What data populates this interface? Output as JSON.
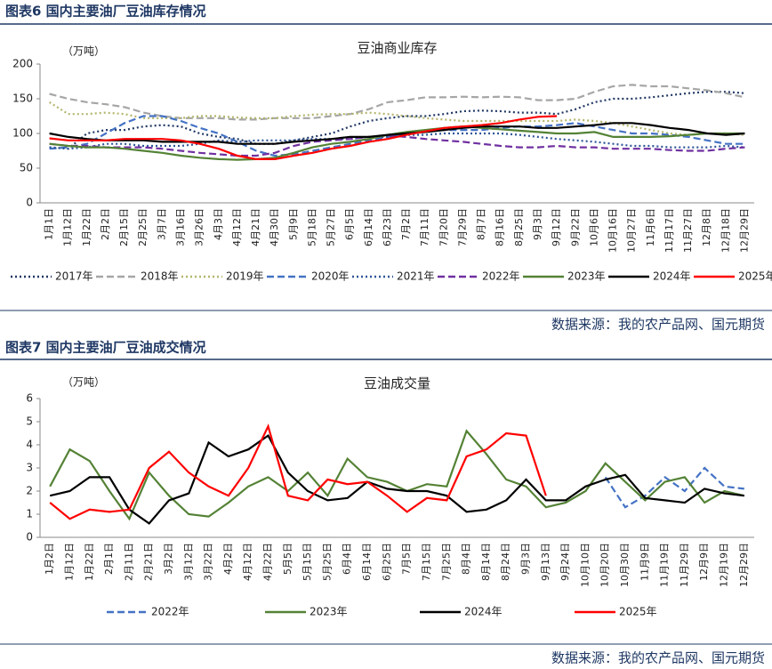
{
  "captions": [
    "图表6  国内主要油厂豆油库存情况",
    "图表7  国内主要油厂豆油成交情况"
  ],
  "sources": [
    "数据来源：我的农产品网、国元期货",
    "数据来源：我的农产品网、国元期货"
  ],
  "chart_data": [
    {
      "type": "line",
      "title": "豆油商业库存",
      "y_unit_label": "（万吨）",
      "categories": [
        "1月1日",
        "1月12日",
        "1月22日",
        "2月2日",
        "2月15日",
        "2月25日",
        "3月7日",
        "3月16日",
        "3月26日",
        "4月3日",
        "4月12日",
        "4月21日",
        "4月30日",
        "5月9日",
        "5月18日",
        "5月27日",
        "6月5日",
        "6月14日",
        "6月23日",
        "7月2日",
        "7月11日",
        "7月20日",
        "7月29日",
        "8月7日",
        "8月16日",
        "8月25日",
        "9月3日",
        "9月12日",
        "9月22日",
        "10月6日",
        "10月16日",
        "10月27日",
        "11月6日",
        "11月17日",
        "11月27日",
        "12月8日",
        "12月18日",
        "12月29日"
      ],
      "ylim": [
        0,
        200
      ],
      "yticks": [
        0,
        50,
        100,
        150,
        200
      ],
      "series": [
        {
          "name": "2017年",
          "color": "#203864",
          "line_style": "dotted",
          "values": [
            80,
            78,
            100,
            105,
            105,
            110,
            112,
            110,
            100,
            95,
            92,
            85,
            85,
            90,
            95,
            100,
            110,
            118,
            122,
            125,
            125,
            128,
            132,
            133,
            132,
            130,
            130,
            128,
            135,
            145,
            150,
            150,
            152,
            155,
            158,
            160,
            160,
            158
          ]
        },
        {
          "name": "2018年",
          "color": "#a6a6a6",
          "line_style": "dashed",
          "values": [
            157,
            150,
            145,
            142,
            138,
            130,
            125,
            122,
            122,
            122,
            120,
            120,
            122,
            122,
            122,
            125,
            128,
            135,
            145,
            148,
            152,
            152,
            153,
            152,
            153,
            152,
            148,
            148,
            150,
            160,
            168,
            170,
            168,
            168,
            165,
            162,
            158,
            152
          ]
        },
        {
          "name": "2019年",
          "color": "#b4b46c",
          "line_style": "dotted",
          "values": [
            145,
            128,
            128,
            130,
            128,
            122,
            122,
            122,
            125,
            125,
            123,
            122,
            122,
            125,
            127,
            128,
            128,
            130,
            128,
            125,
            122,
            120,
            118,
            118,
            118,
            118,
            118,
            118,
            120,
            118,
            115,
            110,
            105,
            100,
            98,
            100,
            100,
            98
          ]
        },
        {
          "name": "2020年",
          "color": "#4472c4",
          "line_style": "dashed",
          "values": [
            78,
            80,
            85,
            100,
            115,
            125,
            125,
            118,
            108,
            100,
            88,
            75,
            68,
            70,
            75,
            80,
            85,
            90,
            95,
            100,
            102,
            105,
            105,
            105,
            108,
            110,
            110,
            112,
            115,
            110,
            105,
            100,
            100,
            98,
            95,
            90,
            85,
            85
          ]
        },
        {
          "name": "2021年",
          "color": "#2e5597",
          "line_style": "dotted",
          "values": [
            80,
            78,
            80,
            85,
            85,
            82,
            82,
            82,
            85,
            90,
            88,
            90,
            90,
            90,
            92,
            92,
            92,
            95,
            95,
            98,
            98,
            100,
            100,
            100,
            100,
            98,
            95,
            92,
            90,
            88,
            85,
            82,
            82,
            80,
            80,
            80,
            82,
            80
          ]
        },
        {
          "name": "2022年",
          "color": "#7030a0",
          "line_style": "dashed",
          "values": [
            85,
            82,
            82,
            80,
            80,
            80,
            78,
            75,
            72,
            70,
            68,
            68,
            72,
            82,
            88,
            90,
            92,
            95,
            97,
            95,
            92,
            90,
            88,
            85,
            82,
            80,
            80,
            82,
            80,
            80,
            78,
            78,
            78,
            76,
            75,
            75,
            78,
            80
          ]
        },
        {
          "name": "2023年",
          "color": "#548235",
          "line_style": "solid",
          "values": [
            85,
            82,
            80,
            80,
            78,
            75,
            72,
            68,
            65,
            63,
            62,
            63,
            65,
            72,
            80,
            85,
            88,
            92,
            98,
            102,
            105,
            108,
            110,
            108,
            106,
            104,
            102,
            100,
            100,
            102,
            95,
            95,
            95,
            96,
            98,
            100,
            100,
            100
          ]
        },
        {
          "name": "2024年",
          "color": "#000000",
          "line_style": "solid",
          "values": [
            100,
            95,
            92,
            90,
            90,
            90,
            88,
            88,
            88,
            88,
            85,
            85,
            85,
            88,
            90,
            92,
            95,
            95,
            98,
            100,
            102,
            105,
            108,
            110,
            110,
            110,
            108,
            108,
            110,
            112,
            115,
            115,
            112,
            108,
            105,
            100,
            98,
            100
          ]
        },
        {
          "name": "2025年",
          "color": "#ff0000",
          "line_style": "solid",
          "values": [
            93,
            90,
            90,
            90,
            92,
            92,
            92,
            90,
            85,
            78,
            68,
            63,
            63,
            68,
            72,
            78,
            82,
            88,
            92,
            98,
            103,
            108,
            110,
            112,
            115,
            120,
            124,
            125,
            null,
            null,
            null,
            null,
            null,
            null,
            null,
            null,
            null,
            null
          ]
        }
      ]
    },
    {
      "type": "line",
      "title": "豆油成交量",
      "y_unit_label": "（万吨）",
      "categories": [
        "1月2日",
        "1月12日",
        "1月22日",
        "2月1日",
        "2月11日",
        "2月21日",
        "3月2日",
        "3月12日",
        "3月22日",
        "4月2日",
        "4月12日",
        "4月22日",
        "5月5日",
        "5月15日",
        "5月25日",
        "6月4日",
        "6月14日",
        "6月25日",
        "7月5日",
        "7月15日",
        "7月25日",
        "8月4日",
        "8月14日",
        "8月24日",
        "9月3日",
        "9月13日",
        "9月24日",
        "10月10日",
        "10月20日",
        "10月30日",
        "11月9日",
        "11月19日",
        "11月29日",
        "12月9日",
        "12月19日",
        "12月29日"
      ],
      "ylim": [
        0,
        6
      ],
      "yticks": [
        0,
        1,
        2,
        3,
        4,
        5,
        6
      ],
      "series": [
        {
          "name": "2022年",
          "color": "#4472c4",
          "line_style": "dashed",
          "values": [
            null,
            null,
            null,
            null,
            null,
            null,
            null,
            null,
            null,
            null,
            null,
            null,
            null,
            null,
            null,
            null,
            null,
            null,
            null,
            null,
            null,
            null,
            null,
            null,
            null,
            null,
            null,
            null,
            2.6,
            1.3,
            1.8,
            2.6,
            2.0,
            3.0,
            2.2,
            2.1
          ]
        },
        {
          "name": "2023年",
          "color": "#548235",
          "line_style": "solid",
          "values": [
            2.2,
            3.8,
            3.3,
            2.0,
            0.8,
            2.8,
            1.8,
            1.0,
            0.9,
            1.5,
            2.2,
            2.6,
            2.0,
            2.8,
            1.8,
            3.4,
            2.6,
            2.4,
            2.0,
            2.3,
            2.2,
            4.6,
            3.6,
            2.5,
            2.2,
            1.3,
            1.5,
            2.0,
            3.2,
            2.4,
            1.6,
            2.4,
            2.6,
            1.5,
            2.0,
            1.8
          ]
        },
        {
          "name": "2024年",
          "color": "#000000",
          "line_style": "solid",
          "values": [
            1.8,
            2.0,
            2.6,
            2.6,
            1.2,
            0.6,
            1.6,
            1.9,
            4.1,
            3.5,
            3.8,
            4.4,
            2.8,
            2.0,
            1.6,
            1.7,
            2.4,
            2.1,
            2.0,
            2.0,
            1.8,
            1.1,
            1.2,
            1.6,
            2.5,
            1.6,
            1.6,
            2.2,
            2.5,
            2.7,
            1.7,
            1.6,
            1.5,
            2.1,
            1.9,
            1.8
          ]
        },
        {
          "name": "2025年",
          "color": "#ff0000",
          "line_style": "solid",
          "values": [
            1.5,
            0.8,
            1.2,
            1.1,
            1.2,
            3.0,
            3.7,
            2.8,
            2.2,
            1.8,
            3.0,
            4.8,
            1.8,
            1.6,
            2.5,
            2.3,
            2.4,
            1.8,
            1.1,
            1.7,
            1.6,
            3.5,
            3.8,
            4.5,
            4.4,
            1.8,
            null,
            null,
            null,
            null,
            null,
            null,
            null,
            null,
            null,
            null
          ]
        }
      ]
    }
  ]
}
